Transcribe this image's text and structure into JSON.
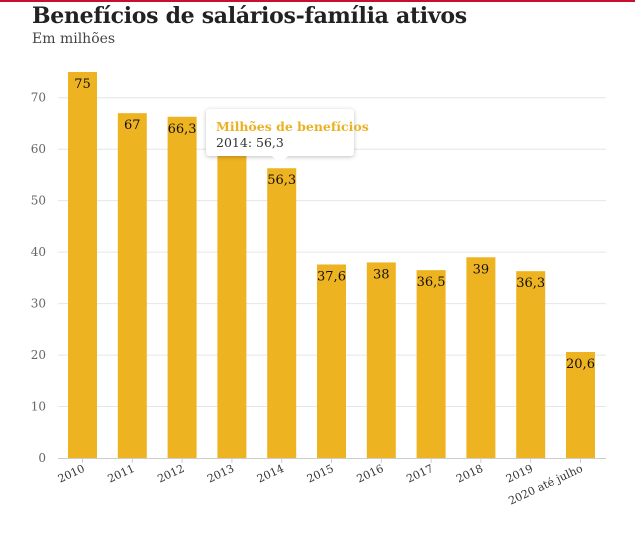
{
  "chart_data": {
    "type": "bar",
    "title": "Benefícios de salários-família ativos",
    "subtitle": "Em milhões",
    "categories": [
      "2010",
      "2011",
      "2012",
      "2013",
      "2014",
      "2015",
      "2016",
      "2017",
      "2018",
      "2019",
      "2020 até julho"
    ],
    "values": [
      75,
      67,
      66.3,
      59.5,
      56.3,
      37.6,
      38,
      36.5,
      39,
      36.3,
      20.6
    ],
    "data_labels": [
      "75",
      "67",
      "66,3",
      "",
      "56,3",
      "37,6",
      "38",
      "36,5",
      "39",
      "36,3",
      "20,6"
    ],
    "ylim": [
      0,
      75
    ],
    "yticks": [
      "0",
      "10",
      "20",
      "30",
      "40",
      "50",
      "60",
      "70"
    ],
    "xlabel": "",
    "ylabel": "",
    "grid": true,
    "colors": {
      "bar": "#eeb321",
      "grid": "#e6e6e6",
      "axis": "#cccccc",
      "tooltip_title": "#eab124"
    }
  },
  "tooltip": {
    "title": "Milhões de benefícios",
    "year": "2014",
    "value": "56,3"
  }
}
